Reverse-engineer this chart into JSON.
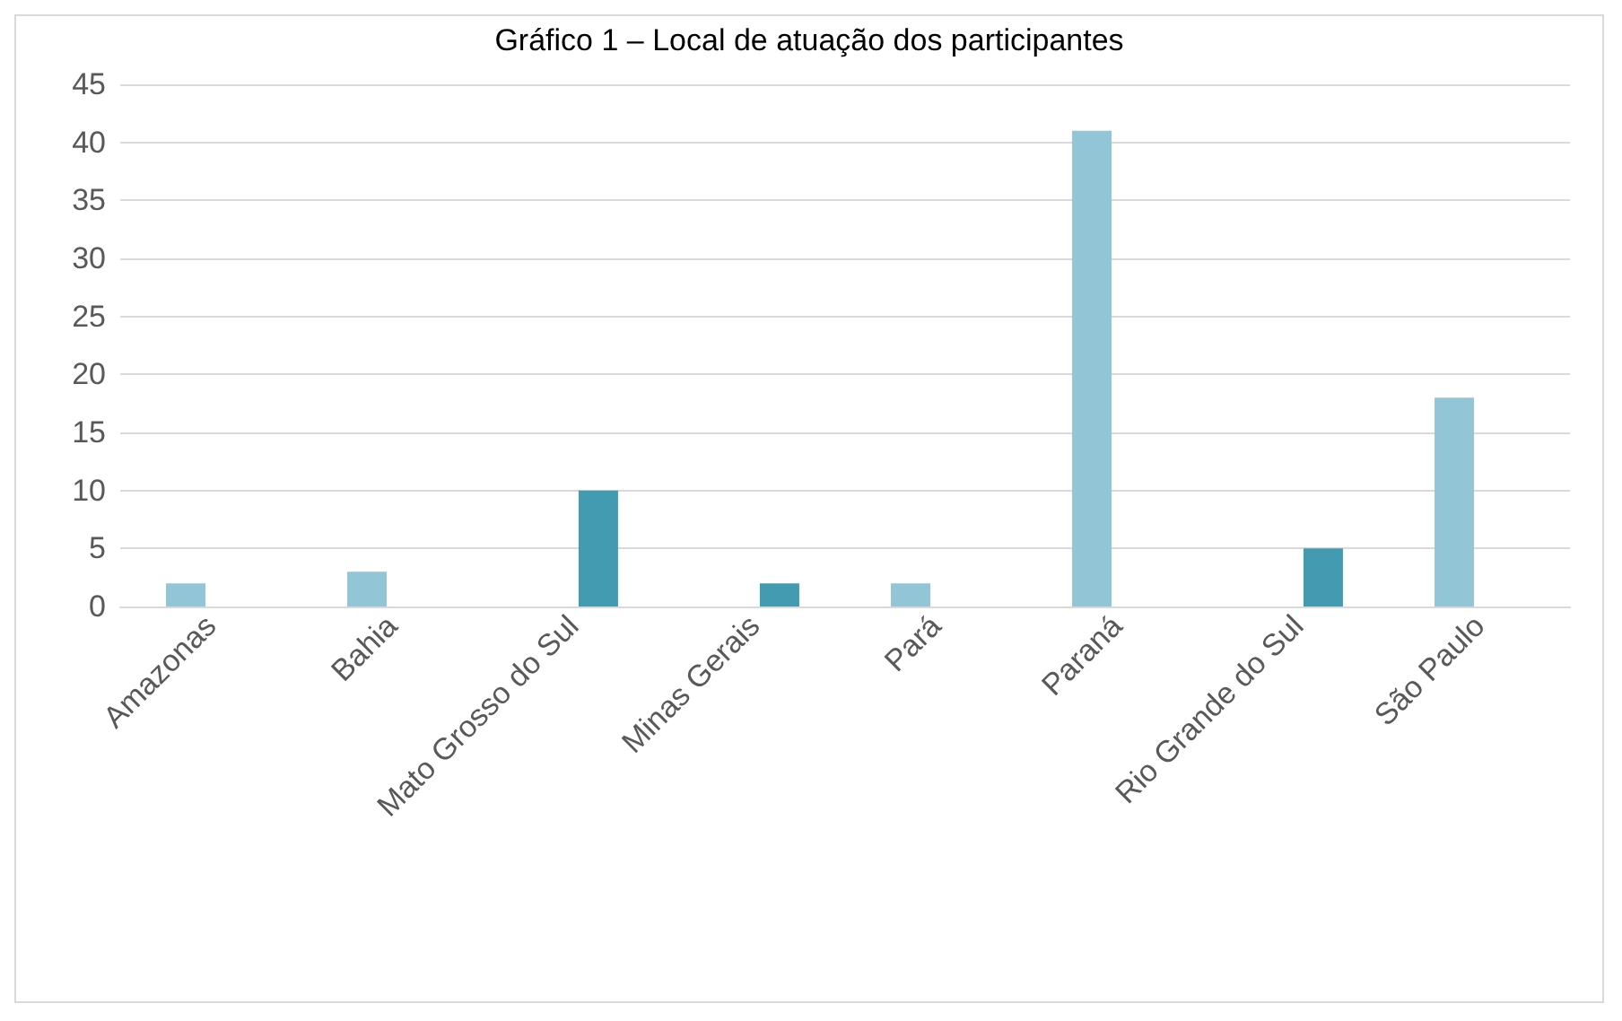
{
  "chart_data": {
    "type": "bar",
    "title": "Gráfico 1 – Local de atuação dos participantes",
    "categories": [
      "Amazonas",
      "Bahia",
      "Mato Grosso do Sul",
      "Minas Gerais",
      "Pará",
      "Paraná",
      "Rio Grande do Sul",
      "São Paulo"
    ],
    "series": [
      {
        "color": "#92c5d6",
        "values": [
          2,
          3,
          null,
          null,
          2,
          41,
          null,
          18
        ]
      },
      {
        "color": "#429bb1",
        "values": [
          null,
          null,
          10,
          2,
          null,
          null,
          5,
          null
        ]
      }
    ],
    "ylim": [
      0,
      45
    ],
    "yticks": [
      0,
      5,
      10,
      15,
      20,
      25,
      30,
      35,
      40,
      45
    ],
    "grid": "y"
  }
}
